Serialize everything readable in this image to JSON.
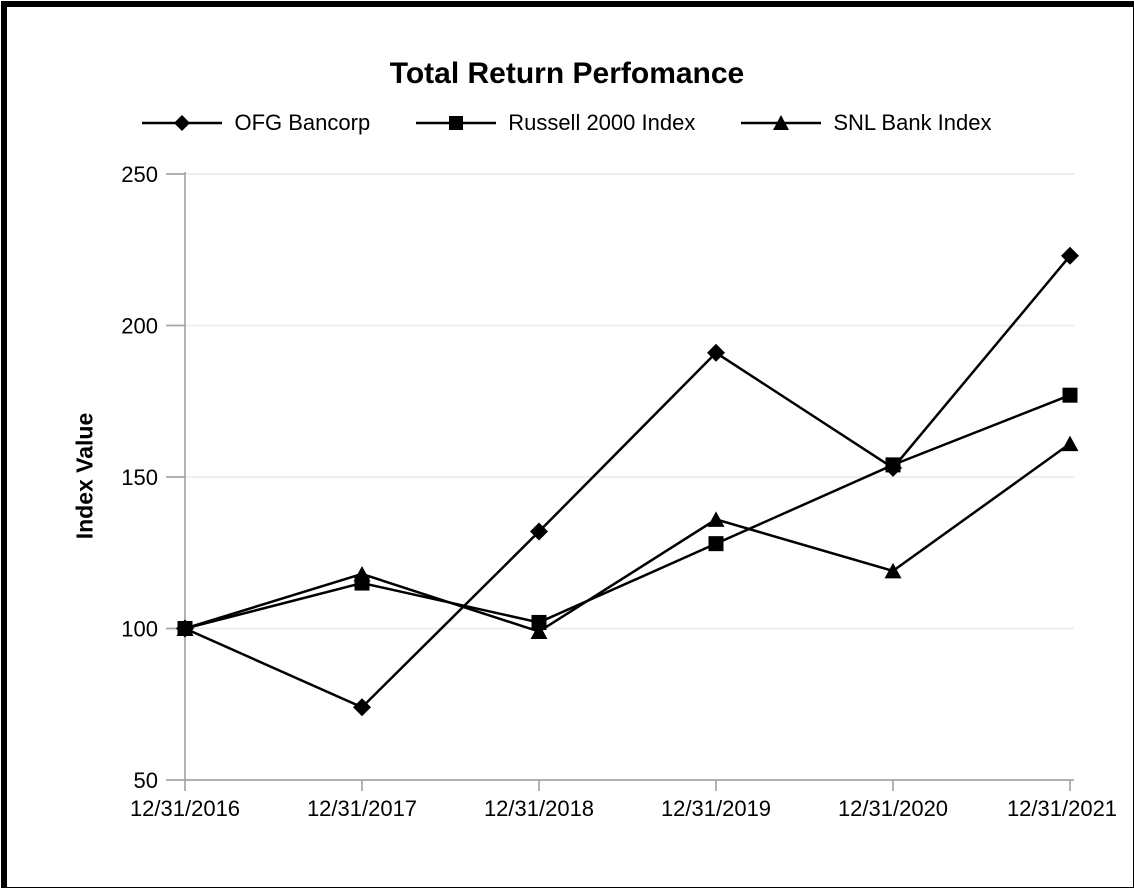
{
  "chart_data": {
    "type": "line",
    "title": "Total Return Perfomance",
    "xlabel": "",
    "ylabel": "Index Value",
    "categories": [
      "12/31/2016",
      "12/31/2017",
      "12/31/2018",
      "12/31/2019",
      "12/31/2020",
      "12/31/2021"
    ],
    "series": [
      {
        "name": "OFG Bancorp",
        "marker": "diamond",
        "values": [
          100,
          74,
          132,
          191,
          153,
          223
        ]
      },
      {
        "name": "Russell 2000 Index",
        "marker": "square",
        "values": [
          100,
          115,
          102,
          128,
          154,
          177
        ]
      },
      {
        "name": "SNL Bank Index",
        "marker": "triangle",
        "values": [
          100,
          118,
          99,
          136,
          119,
          161
        ]
      }
    ],
    "ylim": [
      50,
      250
    ],
    "yticks": [
      50,
      100,
      150,
      200,
      250
    ],
    "grid": true,
    "legend_position": "top",
    "colors": {
      "series": "#000000",
      "grid": "#e9e9e9",
      "axis": "#a6a6a6",
      "text": "#000000",
      "frame": "#000000",
      "background": "#ffffff"
    }
  }
}
